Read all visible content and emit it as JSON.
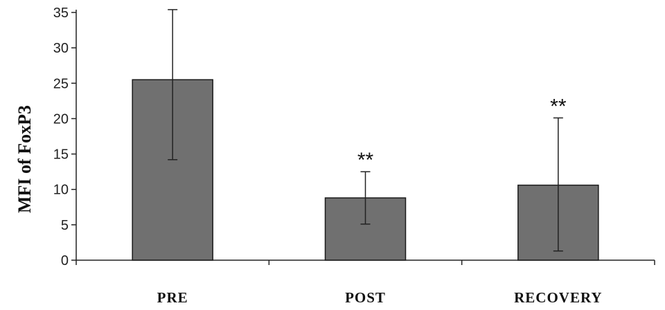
{
  "chart_data": {
    "type": "bar",
    "categories": [
      "PRE",
      "POST",
      "RECOVERY"
    ],
    "values": [
      25.5,
      8.8,
      10.6
    ],
    "error_low": [
      14.2,
      5.1,
      1.3
    ],
    "error_high": [
      35.4,
      12.5,
      20.1
    ],
    "annotations": [
      "",
      "**",
      "**"
    ],
    "title": "",
    "xlabel": "",
    "ylabel": "MFI of FoxP3",
    "ylim": [
      0,
      35
    ],
    "yticks": [
      "0",
      "5",
      "10",
      "15",
      "20",
      "25",
      "30",
      "35"
    ],
    "grid": false,
    "legend": "none",
    "bar_color": "#707070",
    "bar_edge_color": "#1a1a1a"
  }
}
